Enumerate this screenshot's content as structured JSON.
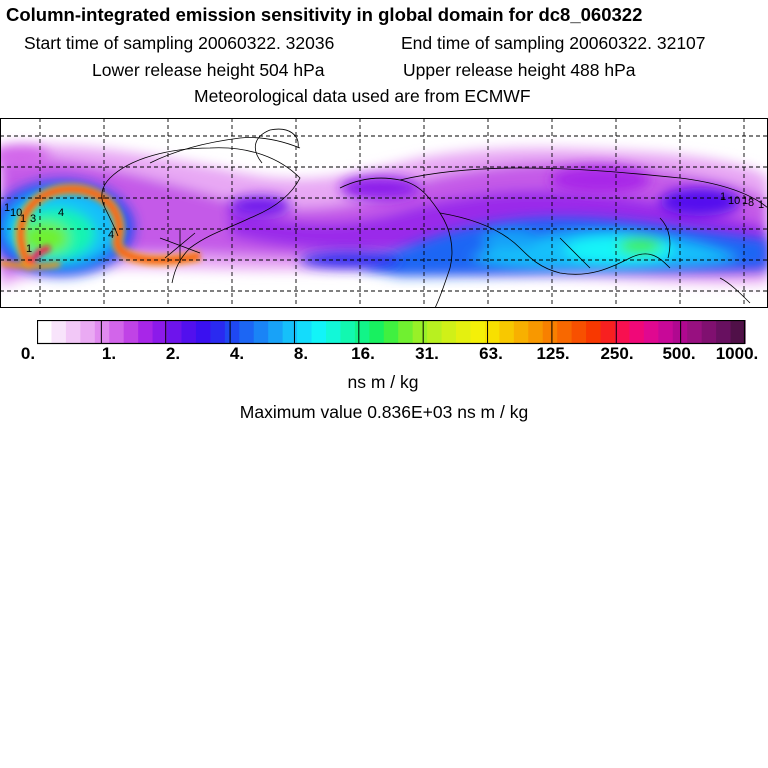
{
  "title": "Column-integrated emission sensitivity in global domain for dc8_060322",
  "sampling": {
    "start": "Start time of sampling 20060322. 32036",
    "end": "End time of sampling 20060322. 32107"
  },
  "release": {
    "lower": "Lower release height  504 hPa",
    "upper": "Upper release height  488 hPa"
  },
  "met_note": "Meteorological data used are from ECMWF",
  "colorbar": {
    "ticks": [
      "0.",
      "1.",
      "2.",
      "4.",
      "8.",
      "16.",
      "31.",
      "63.",
      "125.",
      "250.",
      "500.",
      "1000."
    ],
    "colors": [
      "#ffffff",
      "#f8e4fb",
      "#f2c8f7",
      "#eaaaf3",
      "#e08aef",
      "#d265ea",
      "#c043e6",
      "#a826e8",
      "#8c1aea",
      "#6e14ec",
      "#5210ee",
      "#3a10f0",
      "#2a2af0",
      "#1f48f2",
      "#1c66f4",
      "#1a84f6",
      "#18a2f8",
      "#16c0fa",
      "#14dcfc",
      "#12f4f8",
      "#12f8d8",
      "#12f8b0",
      "#12f488",
      "#18f060",
      "#40f040",
      "#70f030",
      "#98f028",
      "#b8f020",
      "#d0f018",
      "#e4f010",
      "#f4f008",
      "#f8e000",
      "#f8c800",
      "#f8b000",
      "#f89800",
      "#f88000",
      "#f86800",
      "#f85000",
      "#f83800",
      "#f82020",
      "#f81050",
      "#f00878",
      "#e00890",
      "#c80898",
      "#b00890",
      "#981080",
      "#801070",
      "#681060",
      "#501048"
    ],
    "unit": "ns m / kg"
  },
  "maximum": "Maximum value  0.836E+03 ns m / kg",
  "map": {
    "region": "global domain",
    "grid": "dashed",
    "contour_labels": [
      "1",
      "10",
      "1",
      "4",
      "1",
      "4",
      "3",
      "1",
      "10",
      "1",
      "8",
      "1"
    ]
  }
}
